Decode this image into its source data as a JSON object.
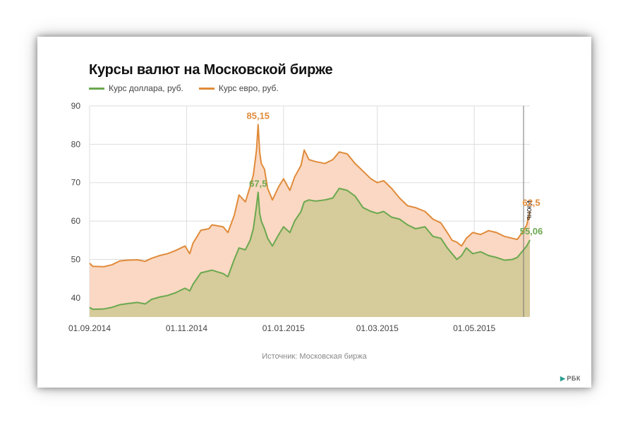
{
  "chart_data": {
    "type": "area",
    "title": "Курсы валют на Московской бирже",
    "x_ticks": [
      "01.09.2014",
      "01.11.2014",
      "01.01.2015",
      "01.03.2015",
      "01.05.2015"
    ],
    "y_ticks": [
      "40",
      "50",
      "60",
      "70",
      "80",
      "90"
    ],
    "ylim": [
      35,
      90
    ],
    "xlim": [
      "2014-09-01",
      "2015-06-05"
    ],
    "grid": true,
    "legend_position": "top-left",
    "series": [
      {
        "name": "Курс евро, руб.",
        "color": "#e08b3a",
        "fill": "#fad8c3",
        "points": [
          [
            "2014-09-01",
            49.0
          ],
          [
            "2014-09-03",
            48.2
          ],
          [
            "2014-09-10",
            48.1
          ],
          [
            "2014-09-15",
            48.6
          ],
          [
            "2014-09-20",
            49.6
          ],
          [
            "2014-09-25",
            49.8
          ],
          [
            "2014-10-01",
            49.9
          ],
          [
            "2014-10-06",
            49.5
          ],
          [
            "2014-10-10",
            50.3
          ],
          [
            "2014-10-15",
            51.0
          ],
          [
            "2014-10-20",
            51.5
          ],
          [
            "2014-10-25",
            52.3
          ],
          [
            "2014-10-31",
            53.5
          ],
          [
            "2014-11-03",
            51.5
          ],
          [
            "2014-11-05",
            54.2
          ],
          [
            "2014-11-10",
            57.6
          ],
          [
            "2014-11-15",
            58.0
          ],
          [
            "2014-11-17",
            59.0
          ],
          [
            "2014-11-24",
            58.5
          ],
          [
            "2014-11-27",
            57.0
          ],
          [
            "2014-12-01",
            61.5
          ],
          [
            "2014-12-04",
            66.8
          ],
          [
            "2014-12-08",
            65.0
          ],
          [
            "2014-12-11",
            69.0
          ],
          [
            "2014-12-13",
            72.0
          ],
          [
            "2014-12-15",
            78.5
          ],
          [
            "2014-12-16",
            85.15
          ],
          [
            "2014-12-17",
            78.0
          ],
          [
            "2014-12-18",
            75.0
          ],
          [
            "2014-12-20",
            73.5
          ],
          [
            "2014-12-22",
            68.5
          ],
          [
            "2014-12-25",
            65.5
          ],
          [
            "2014-12-29",
            69.0
          ],
          [
            "2015-01-01",
            71.0
          ],
          [
            "2015-01-05",
            68.0
          ],
          [
            "2015-01-08",
            71.5
          ],
          [
            "2015-01-12",
            74.5
          ],
          [
            "2015-01-14",
            78.5
          ],
          [
            "2015-01-17",
            76.0
          ],
          [
            "2015-01-21",
            75.5
          ],
          [
            "2015-01-27",
            75.0
          ],
          [
            "2015-02-01",
            76.0
          ],
          [
            "2015-02-05",
            78.0
          ],
          [
            "2015-02-10",
            77.5
          ],
          [
            "2015-02-15",
            75.0
          ],
          [
            "2015-02-20",
            73.0
          ],
          [
            "2015-02-25",
            71.0
          ],
          [
            "2015-03-01",
            70.0
          ],
          [
            "2015-03-05",
            70.5
          ],
          [
            "2015-03-10",
            68.5
          ],
          [
            "2015-03-15",
            66.0
          ],
          [
            "2015-03-20",
            64.0
          ],
          [
            "2015-03-25",
            63.5
          ],
          [
            "2015-03-31",
            62.5
          ],
          [
            "2015-04-05",
            60.5
          ],
          [
            "2015-04-10",
            59.5
          ],
          [
            "2015-04-14",
            57.0
          ],
          [
            "2015-04-17",
            55.0
          ],
          [
            "2015-04-20",
            54.5
          ],
          [
            "2015-04-23",
            53.5
          ],
          [
            "2015-04-26",
            55.5
          ],
          [
            "2015-04-30",
            57.0
          ],
          [
            "2015-05-05",
            56.5
          ],
          [
            "2015-05-10",
            57.5
          ],
          [
            "2015-05-15",
            57.0
          ],
          [
            "2015-05-20",
            56.0
          ],
          [
            "2015-05-25",
            55.5
          ],
          [
            "2015-05-28",
            55.2
          ],
          [
            "2015-06-01",
            57.5
          ],
          [
            "2015-06-03",
            59.0
          ],
          [
            "2015-06-05",
            62.5
          ]
        ]
      },
      {
        "name": "Курс доллара, руб.",
        "color": "#6aa84f",
        "fill": "#d6cb9a",
        "points": [
          [
            "2014-09-01",
            37.5
          ],
          [
            "2014-09-03",
            37.0
          ],
          [
            "2014-09-10",
            37.1
          ],
          [
            "2014-09-15",
            37.5
          ],
          [
            "2014-09-20",
            38.2
          ],
          [
            "2014-09-25",
            38.5
          ],
          [
            "2014-10-01",
            38.8
          ],
          [
            "2014-10-06",
            38.4
          ],
          [
            "2014-10-10",
            39.6
          ],
          [
            "2014-10-15",
            40.2
          ],
          [
            "2014-10-20",
            40.6
          ],
          [
            "2014-10-25",
            41.3
          ],
          [
            "2014-10-31",
            42.5
          ],
          [
            "2014-11-03",
            41.8
          ],
          [
            "2014-11-05",
            43.5
          ],
          [
            "2014-11-10",
            46.5
          ],
          [
            "2014-11-15",
            47.0
          ],
          [
            "2014-11-17",
            47.2
          ],
          [
            "2014-11-24",
            46.3
          ],
          [
            "2014-11-27",
            45.5
          ],
          [
            "2014-12-01",
            50.0
          ],
          [
            "2014-12-04",
            53.0
          ],
          [
            "2014-12-08",
            52.5
          ],
          [
            "2014-12-11",
            55.0
          ],
          [
            "2014-12-13",
            58.0
          ],
          [
            "2014-12-15",
            64.0
          ],
          [
            "2014-12-16",
            67.5
          ],
          [
            "2014-12-17",
            62.0
          ],
          [
            "2014-12-18",
            60.0
          ],
          [
            "2014-12-20",
            58.0
          ],
          [
            "2014-12-22",
            55.5
          ],
          [
            "2014-12-25",
            53.5
          ],
          [
            "2014-12-29",
            56.5
          ],
          [
            "2015-01-01",
            58.5
          ],
          [
            "2015-01-05",
            57.0
          ],
          [
            "2015-01-08",
            60.0
          ],
          [
            "2015-01-12",
            62.5
          ],
          [
            "2015-01-14",
            65.0
          ],
          [
            "2015-01-17",
            65.5
          ],
          [
            "2015-01-21",
            65.2
          ],
          [
            "2015-01-27",
            65.5
          ],
          [
            "2015-02-01",
            66.0
          ],
          [
            "2015-02-05",
            68.5
          ],
          [
            "2015-02-10",
            68.0
          ],
          [
            "2015-02-15",
            66.5
          ],
          [
            "2015-02-20",
            63.5
          ],
          [
            "2015-02-25",
            62.5
          ],
          [
            "2015-03-01",
            62.0
          ],
          [
            "2015-03-05",
            62.5
          ],
          [
            "2015-03-10",
            61.0
          ],
          [
            "2015-03-15",
            60.5
          ],
          [
            "2015-03-20",
            59.0
          ],
          [
            "2015-03-25",
            58.0
          ],
          [
            "2015-03-31",
            58.5
          ],
          [
            "2015-04-05",
            56.0
          ],
          [
            "2015-04-10",
            55.5
          ],
          [
            "2015-04-14",
            53.0
          ],
          [
            "2015-04-17",
            51.5
          ],
          [
            "2015-04-20",
            50.0
          ],
          [
            "2015-04-23",
            51.0
          ],
          [
            "2015-04-26",
            53.0
          ],
          [
            "2015-04-30",
            51.5
          ],
          [
            "2015-05-05",
            52.0
          ],
          [
            "2015-05-10",
            51.0
          ],
          [
            "2015-05-15",
            50.5
          ],
          [
            "2015-05-20",
            49.8
          ],
          [
            "2015-05-25",
            50.0
          ],
          [
            "2015-05-28",
            50.5
          ],
          [
            "2015-06-01",
            52.5
          ],
          [
            "2015-06-03",
            53.5
          ],
          [
            "2015-06-05",
            55.06
          ]
        ]
      }
    ],
    "annotations": [
      {
        "text": "85,15",
        "series": "Курс евро, руб.",
        "date": "2014-12-16",
        "color": "#e08b3a"
      },
      {
        "text": "67,5",
        "series": "Курс доллара, руб.",
        "date": "2014-12-16",
        "color": "#6aa84f"
      },
      {
        "text": "62,5",
        "series": "Курс евро, руб.",
        "date": "2015-06-05",
        "color": "#e08b3a"
      },
      {
        "text": "55,06",
        "series": "Курс доллара, руб.",
        "date": "2015-06-05",
        "color": "#6aa84f"
      }
    ],
    "marker": {
      "date": "2015-06-01",
      "label": "Июнь"
    }
  },
  "source_text": "Источник: Московская биржа",
  "logo_text": "РБК"
}
